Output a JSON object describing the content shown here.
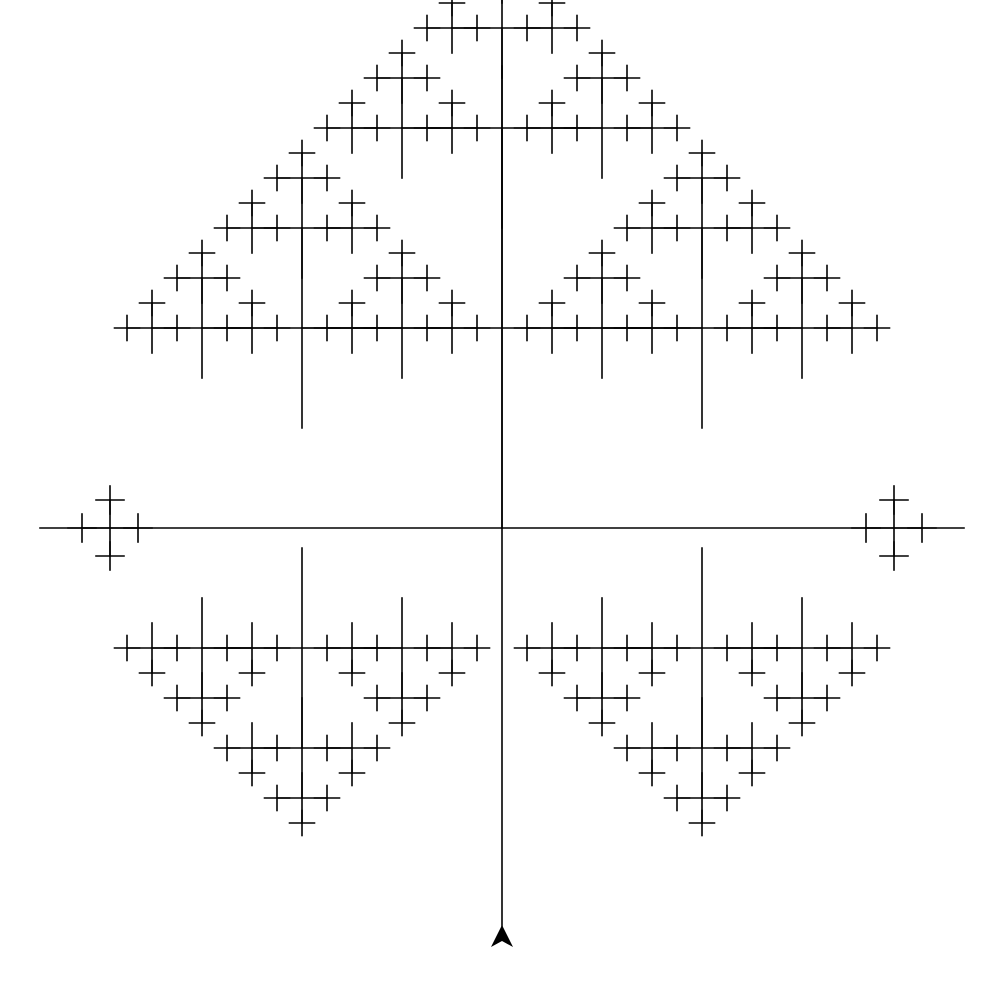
{
  "canvas": {
    "background": "#ffffff",
    "stroke_color": "#000000"
  },
  "fractal": {
    "kind": "h-tree",
    "recursion_depth": 7,
    "branch_scale": 0.5
  },
  "turtle": {
    "icon": "turtle-arrow-icon",
    "heading": "up",
    "color": "#000000"
  }
}
